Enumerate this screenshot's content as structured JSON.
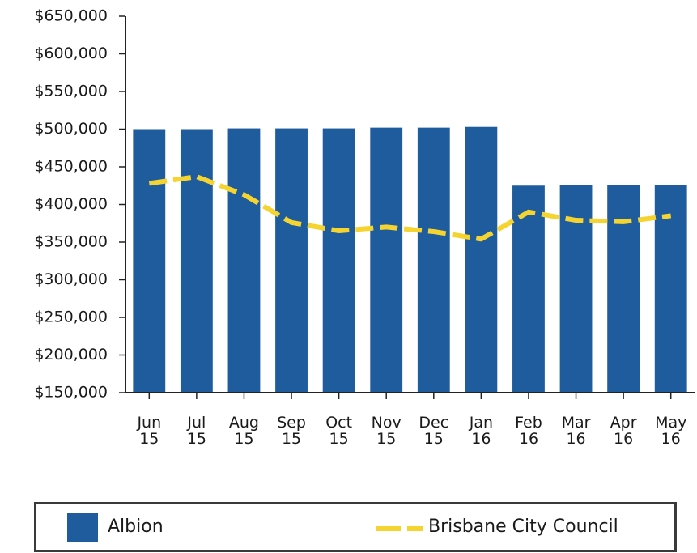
{
  "chart_data": {
    "type": "bar-line",
    "categories": [
      "Jun 15",
      "Jul 15",
      "Aug 15",
      "Sep 15",
      "Oct 15",
      "Nov 15",
      "Dec 15",
      "Jan 16",
      "Feb 16",
      "Mar 16",
      "Apr 16",
      "May 16"
    ],
    "series": [
      {
        "name": "Albion",
        "type": "bar",
        "color": "#1f5c9e",
        "values": [
          500000,
          500000,
          501000,
          501000,
          501000,
          502000,
          502000,
          503000,
          425000,
          426000,
          426000,
          426000
        ]
      },
      {
        "name": "Brisbane City Council",
        "type": "line",
        "color": "#f5d430",
        "values": [
          428000,
          437000,
          413000,
          376000,
          365000,
          370000,
          364000,
          354000,
          390000,
          379000,
          377000,
          385000
        ]
      }
    ],
    "ylim": [
      150000,
      650000
    ],
    "yticks": [
      {
        "value": 150000,
        "label": "$150,000"
      },
      {
        "value": 200000,
        "label": "$200,000"
      },
      {
        "value": 250000,
        "label": "$250,000"
      },
      {
        "value": 300000,
        "label": "$300,000"
      },
      {
        "value": 350000,
        "label": "$350,000"
      },
      {
        "value": 400000,
        "label": "$400,000"
      },
      {
        "value": 450000,
        "label": "$450,000"
      },
      {
        "value": 500000,
        "label": "$500,000"
      },
      {
        "value": 550000,
        "label": "$550,000"
      },
      {
        "value": 600000,
        "label": "$600,000"
      },
      {
        "value": 650000,
        "label": "$650,000"
      }
    ],
    "grid": false,
    "legend": "bottom"
  }
}
